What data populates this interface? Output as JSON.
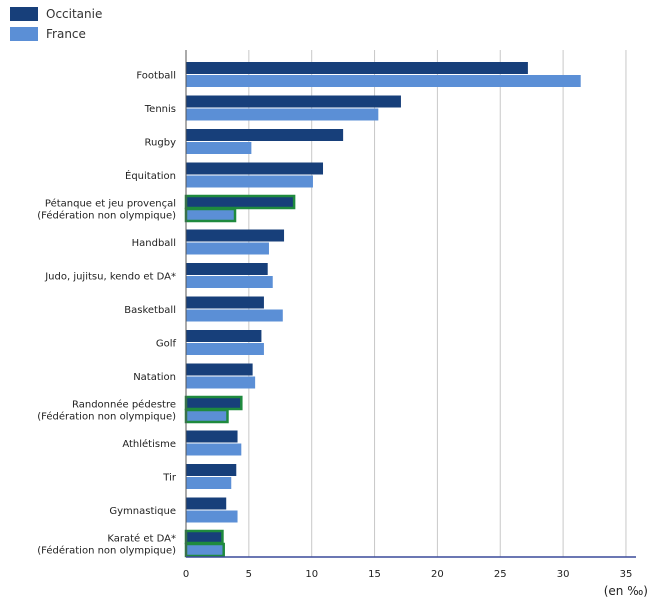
{
  "chart_data": {
    "type": "bar",
    "orientation": "horizontal",
    "unit_label": "(en ‰)",
    "xlim": [
      0,
      36
    ],
    "xticks": [
      0,
      5,
      10,
      15,
      20,
      25,
      30,
      35
    ],
    "grid": "vertical",
    "legend_position": "top-left",
    "categories": [
      [
        "Football"
      ],
      [
        "Tennis"
      ],
      [
        "Rugby"
      ],
      [
        "Équitation"
      ],
      [
        "Pétanque et jeu provençal",
        "(Fédération non olympique)"
      ],
      [
        "Handball"
      ],
      [
        "Judo, jujitsu, kendo et DA*"
      ],
      [
        "Basketball"
      ],
      [
        "Golf"
      ],
      [
        "Natation"
      ],
      [
        "Randonnée pédestre",
        "(Fédération non olympique)"
      ],
      [
        "Athlétisme"
      ],
      [
        "Tir"
      ],
      [
        "Gymnastique"
      ],
      [
        "Karaté et DA*",
        "(Fédération non olympique)"
      ]
    ],
    "highlighted": [
      false,
      false,
      false,
      false,
      true,
      false,
      false,
      false,
      false,
      false,
      true,
      false,
      false,
      false,
      true
    ],
    "series": [
      {
        "name": "Occitanie",
        "color": "#173f7a",
        "values": [
          27.2,
          17.1,
          12.5,
          10.9,
          8.6,
          7.8,
          6.5,
          6.2,
          6.0,
          5.3,
          4.4,
          4.1,
          4.0,
          3.2,
          2.9
        ]
      },
      {
        "name": "France",
        "color": "#5b8fd6",
        "values": [
          31.4,
          15.3,
          5.2,
          10.1,
          3.9,
          6.6,
          6.9,
          7.7,
          6.2,
          5.5,
          3.3,
          4.4,
          3.6,
          4.1,
          3.0
        ]
      }
    ]
  },
  "colors": {
    "highlight_outline": "#1f8a3e",
    "axis": "#3a4a9a",
    "grid": "#c8c8c8"
  }
}
